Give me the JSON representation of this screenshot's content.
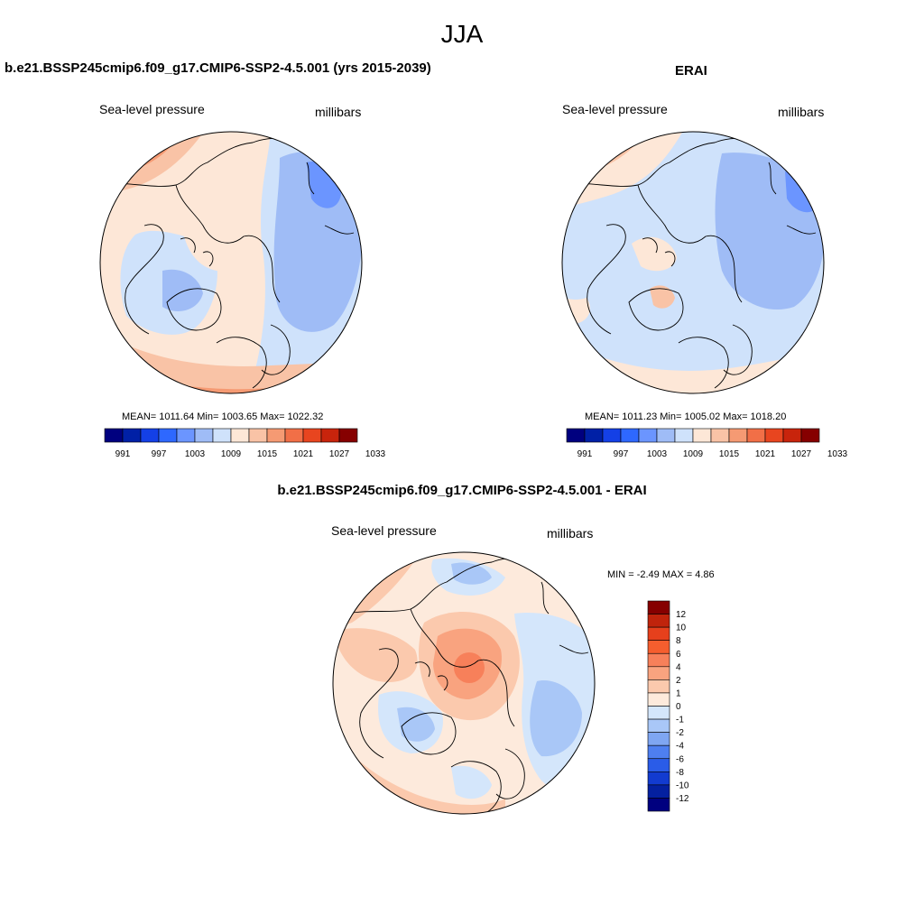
{
  "title": "JJA",
  "panels": {
    "model": {
      "title": "b.e21.BSSP245cmip6.f09_g17.CMIP6-SSP2-4.5.001 (yrs 2015-2039)",
      "variable": "Sea-level pressure",
      "units": "millibars",
      "stats": "MEAN= 1011.64  Min= 1003.65  Max= 1022.32"
    },
    "obs": {
      "title": "ERAI",
      "variable": "Sea-level pressure",
      "units": "millibars",
      "stats": "MEAN= 1011.23  Min= 1005.02  Max= 1018.20"
    },
    "diff": {
      "title": "b.e21.BSSP245cmip6.f09_g17.CMIP6-SSP2-4.5.001 - ERAI",
      "variable": "Sea-level pressure",
      "units": "millibars",
      "stats": "MIN =  -2.49 MAX =   4.86"
    }
  },
  "colorbar": {
    "colors": [
      "#00007f",
      "#0020a6",
      "#1440e6",
      "#2e68ff",
      "#6b95ff",
      "#9fbcf6",
      "#cfe2fb",
      "#fde7d7",
      "#f9c3a6",
      "#f59a73",
      "#f16f47",
      "#e8451f",
      "#c8240c",
      "#860000"
    ],
    "tick_labels": [
      "991",
      "997",
      "1003",
      "1009",
      "1015",
      "1021",
      "1027",
      "1033"
    ]
  },
  "diff_colorbar": {
    "colors": [
      "#860000",
      "#c0240c",
      "#e6401c",
      "#f55e2e",
      "#f7805a",
      "#f9a37f",
      "#fbc9ad",
      "#fdeadc",
      "#d4e6fb",
      "#a9c7f7",
      "#7fa6f2",
      "#4e7ff0",
      "#2a5ce8",
      "#123bd0",
      "#0420a0",
      "#00007f"
    ],
    "tick_labels": [
      "12",
      "10",
      "8",
      "6",
      "4",
      "2",
      "1",
      "0",
      "-1",
      "-2",
      "-4",
      "-6",
      "-8",
      "-10",
      "-12"
    ]
  }
}
